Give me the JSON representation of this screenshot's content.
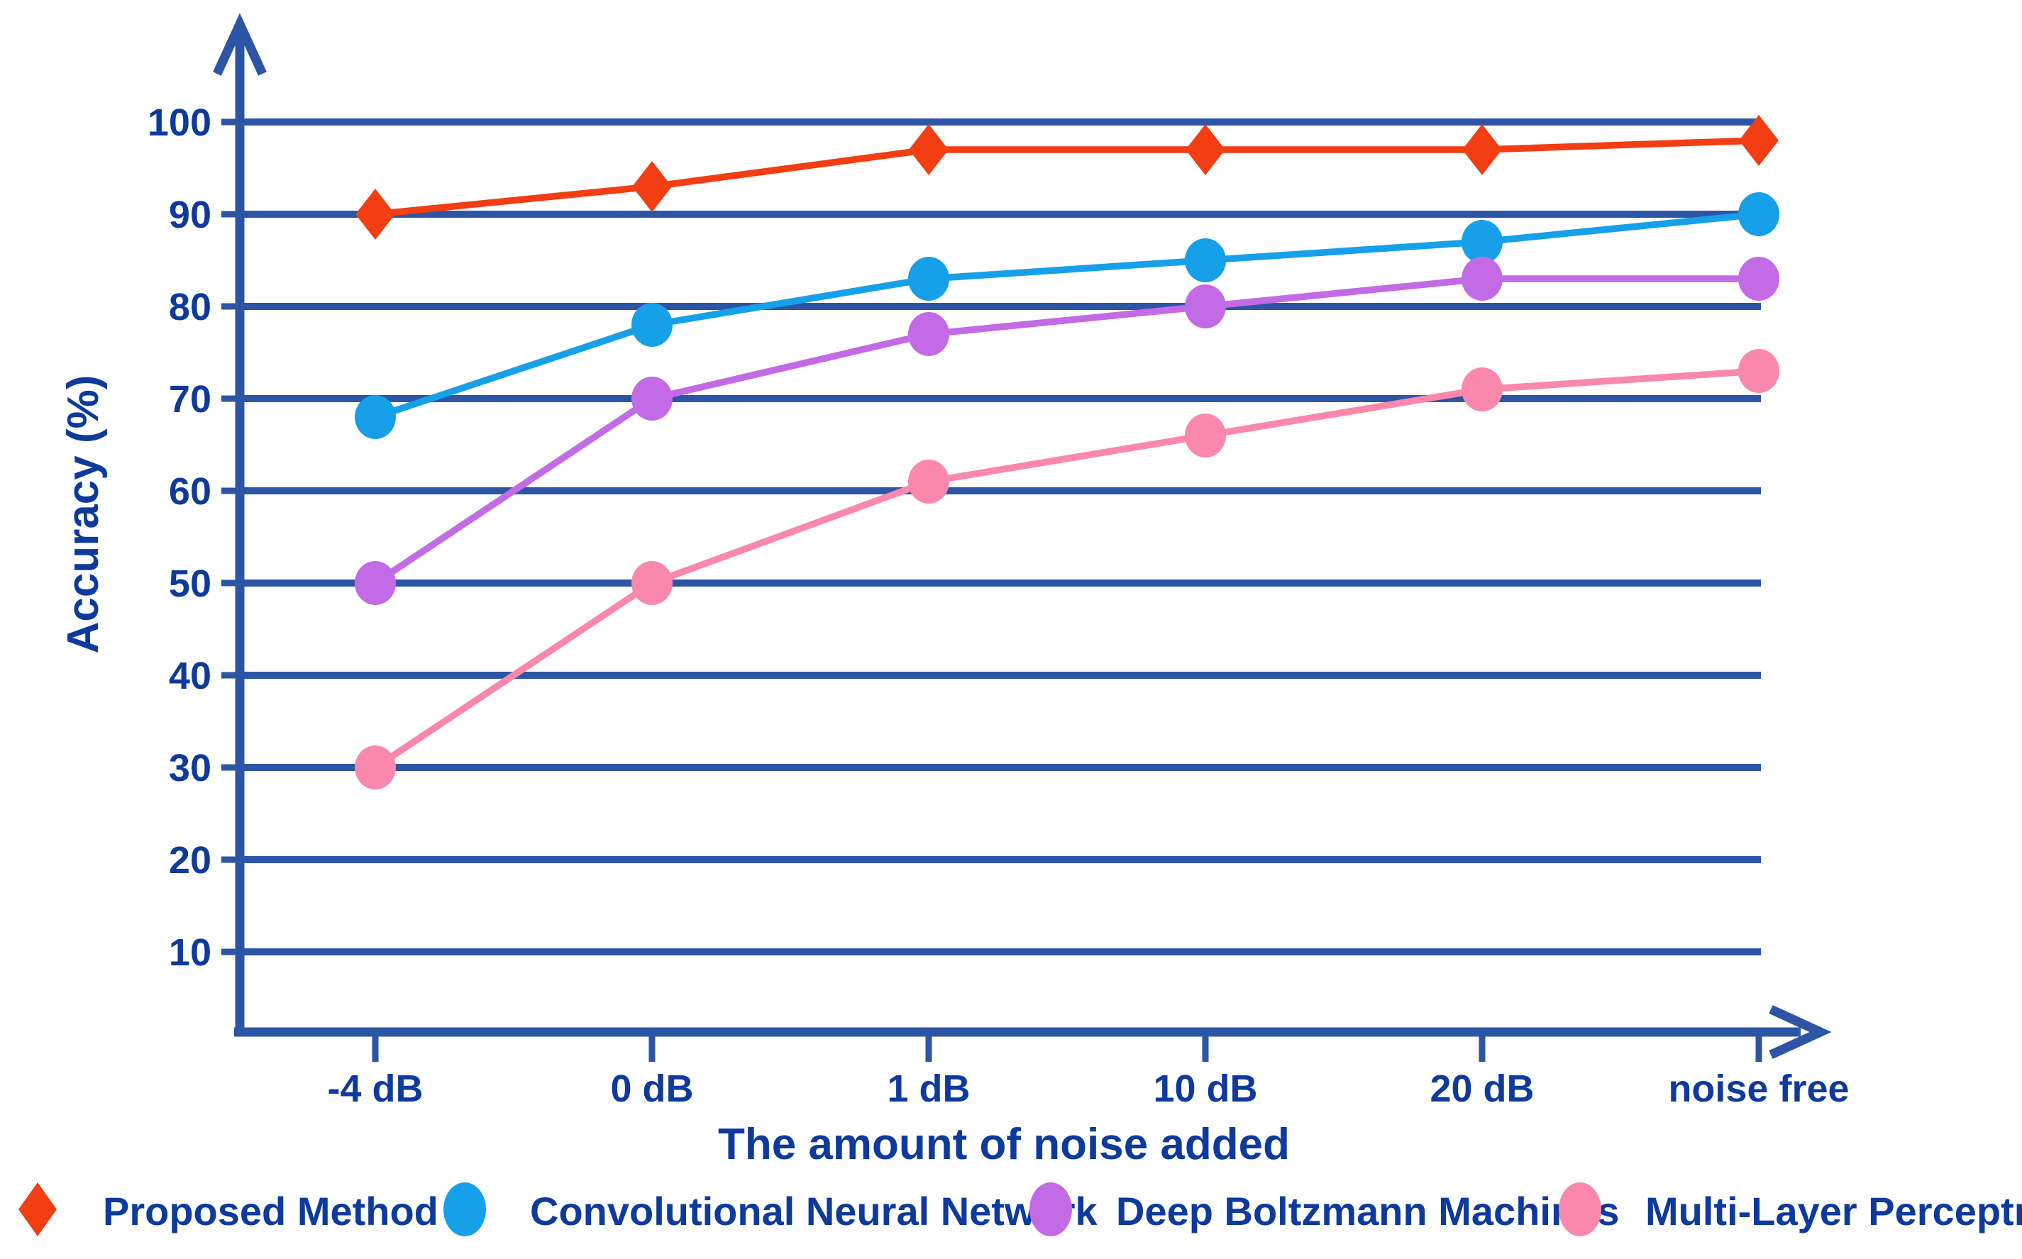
{
  "chart_data": {
    "type": "line",
    "title": "",
    "xlabel": "The amount of noise added",
    "ylabel": "Accuracy (%)",
    "categories": [
      "-4 dB",
      "0 dB",
      "1 dB",
      "10 dB",
      "20 dB",
      "noise free"
    ],
    "yticks": [
      10,
      20,
      30,
      40,
      50,
      60,
      70,
      80,
      90,
      100
    ],
    "ylim": [
      0,
      110
    ],
    "grid": "horizontal-only",
    "legend_position": "bottom",
    "series": [
      {
        "name": "Proposed Method",
        "marker": "diamond",
        "color": "#f33d12",
        "values": [
          90,
          93,
          97,
          97,
          97,
          98
        ]
      },
      {
        "name": "Convolutional Neural Network",
        "marker": "circle",
        "color": "#16a0ea",
        "values": [
          68,
          78,
          83,
          85,
          87,
          90
        ]
      },
      {
        "name": "Deep Boltzmann Machines",
        "marker": "circle",
        "color": "#c36ae6",
        "values": [
          50,
          70,
          77,
          80,
          83,
          83
        ]
      },
      {
        "name": "Multi-Layer Perceptron",
        "marker": "circle",
        "color": "#fa87ac",
        "values": [
          30,
          50,
          61,
          66,
          71,
          73
        ]
      }
    ]
  },
  "colors": {
    "axis": "#2d55a5",
    "grid": "#2d55a5",
    "text": "#0d3a9c",
    "background": "#ffffff"
  }
}
